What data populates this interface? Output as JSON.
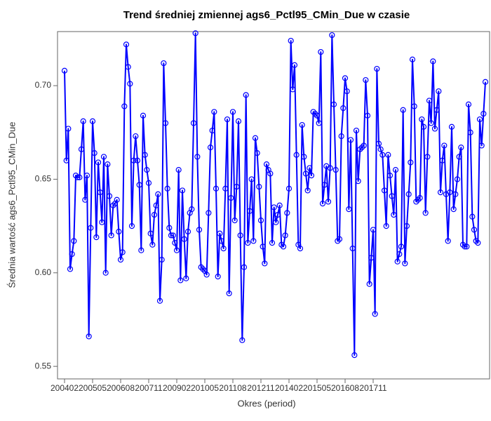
{
  "chart_data": {
    "type": "line",
    "title": "Trend średniej zmiennej ags6_Pctl95_CMin_Due w czasie",
    "x_label": "Okres (period)",
    "y_label": "Średnia wartość ags6_Pctl95_CMin_Due",
    "color": "#0000ff",
    "categories": [
      "200402",
      null,
      null,
      null,
      null,
      null,
      null,
      null,
      null,
      null,
      null,
      null,
      null,
      null,
      null,
      "200505",
      null,
      null,
      null,
      null,
      null,
      null,
      null,
      null,
      null,
      null,
      null,
      null,
      null,
      null,
      "200608",
      null,
      null,
      null,
      null,
      null,
      null,
      null,
      null,
      null,
      null,
      null,
      null,
      null,
      null,
      "200711",
      null,
      null,
      null,
      null,
      null,
      null,
      null,
      null,
      null,
      null,
      null,
      null,
      null,
      null,
      "200902",
      null,
      null,
      null,
      null,
      null,
      null,
      null,
      null,
      null,
      null,
      null,
      null,
      null,
      null,
      "201005",
      null,
      null,
      null,
      null,
      null,
      null,
      null,
      null,
      null,
      null,
      null,
      null,
      null,
      null,
      "201108",
      null,
      null,
      null,
      null,
      null,
      null,
      null,
      null,
      null,
      null,
      null,
      null,
      null,
      null,
      "201211",
      null,
      null,
      null,
      null,
      null,
      null,
      null,
      null,
      null,
      null,
      null,
      null,
      null,
      null,
      "201402",
      null,
      null,
      null,
      null,
      null,
      null,
      null,
      null,
      null,
      null,
      null,
      null,
      null,
      null,
      "201505",
      null,
      null,
      null,
      null,
      null,
      null,
      null,
      null,
      null,
      null,
      null,
      null,
      null,
      null,
      "201608",
      null,
      null,
      null,
      null,
      null,
      null,
      null,
      null,
      null,
      null,
      null,
      null,
      null,
      null,
      "201711",
      null,
      null,
      null,
      null,
      null,
      null,
      null,
      null,
      null,
      null,
      null,
      null,
      null,
      null,
      null,
      null,
      null,
      null,
      null,
      null,
      null,
      null,
      null,
      null,
      null,
      null,
      null,
      null,
      null,
      null,
      null,
      null,
      null,
      null,
      null,
      null,
      null,
      null,
      null,
      null,
      null,
      null,
      null,
      null,
      null,
      null,
      null,
      null,
      null,
      null,
      null,
      null,
      null,
      null,
      null,
      null,
      null,
      null,
      null,
      null
    ],
    "values": [
      0.708,
      0.66,
      0.677,
      0.602,
      0.61,
      0.617,
      0.652,
      0.651,
      0.651,
      0.666,
      0.681,
      0.639,
      0.652,
      0.566,
      0.624,
      0.681,
      0.664,
      0.619,
      0.659,
      0.643,
      0.627,
      0.662,
      0.6,
      0.658,
      0.641,
      0.62,
      0.636,
      0.637,
      0.639,
      0.622,
      0.607,
      0.611,
      0.689,
      0.722,
      0.71,
      0.701,
      0.625,
      0.66,
      0.673,
      0.66,
      0.647,
      0.612,
      0.684,
      0.663,
      0.655,
      0.648,
      0.621,
      0.615,
      0.631,
      0.636,
      0.642,
      0.585,
      0.607,
      0.712,
      0.68,
      0.645,
      0.624,
      0.62,
      0.62,
      0.616,
      0.612,
      0.655,
      0.596,
      0.644,
      0.618,
      0.597,
      0.622,
      0.632,
      0.634,
      0.68,
      0.728,
      0.662,
      0.623,
      0.603,
      0.602,
      0.601,
      0.599,
      0.632,
      0.667,
      0.676,
      0.686,
      0.645,
      0.598,
      0.621,
      0.617,
      0.613,
      0.645,
      0.682,
      0.589,
      0.64,
      0.686,
      0.628,
      0.646,
      0.681,
      0.62,
      0.564,
      0.603,
      0.695,
      0.616,
      0.633,
      0.65,
      0.617,
      0.672,
      0.664,
      0.646,
      0.628,
      0.614,
      0.605,
      0.658,
      0.655,
      0.653,
      0.616,
      0.635,
      0.627,
      0.631,
      0.636,
      0.615,
      0.614,
      0.62,
      0.632,
      0.645,
      0.724,
      0.698,
      0.711,
      0.663,
      0.615,
      0.613,
      0.679,
      0.662,
      0.653,
      0.644,
      0.656,
      0.652,
      0.686,
      0.685,
      0.684,
      0.68,
      0.718,
      0.637,
      0.647,
      0.657,
      0.638,
      0.656,
      0.727,
      0.69,
      0.655,
      0.617,
      0.618,
      0.673,
      0.688,
      0.704,
      0.697,
      0.634,
      0.671,
      0.613,
      0.556,
      0.676,
      0.649,
      0.666,
      0.667,
      0.668,
      0.703,
      0.684,
      0.594,
      0.608,
      0.623,
      0.578,
      0.709,
      0.669,
      0.666,
      0.663,
      0.644,
      0.625,
      0.663,
      0.652,
      0.641,
      0.631,
      0.655,
      0.606,
      0.61,
      0.614,
      0.687,
      0.605,
      0.625,
      0.642,
      0.659,
      0.714,
      0.689,
      0.638,
      0.639,
      0.64,
      0.682,
      0.678,
      0.632,
      0.662,
      0.692,
      0.68,
      0.713,
      0.677,
      0.687,
      0.697,
      0.643,
      0.66,
      0.668,
      0.642,
      0.617,
      0.643,
      0.678,
      0.634,
      0.642,
      0.65,
      0.662,
      0.667,
      0.615,
      0.614,
      0.614,
      0.69,
      0.675,
      0.63,
      0.623,
      0.617,
      0.616,
      0.682,
      0.668,
      0.685,
      0.702
    ],
    "ylim": [
      0.5433,
      0.7289
    ],
    "yticks": [
      0.55,
      {
        "value": 0.6,
        "label": "0.60"
      },
      0.65,
      {
        "value": 0.7,
        "label": "0.70"
      }
    ],
    "grid": false
  }
}
